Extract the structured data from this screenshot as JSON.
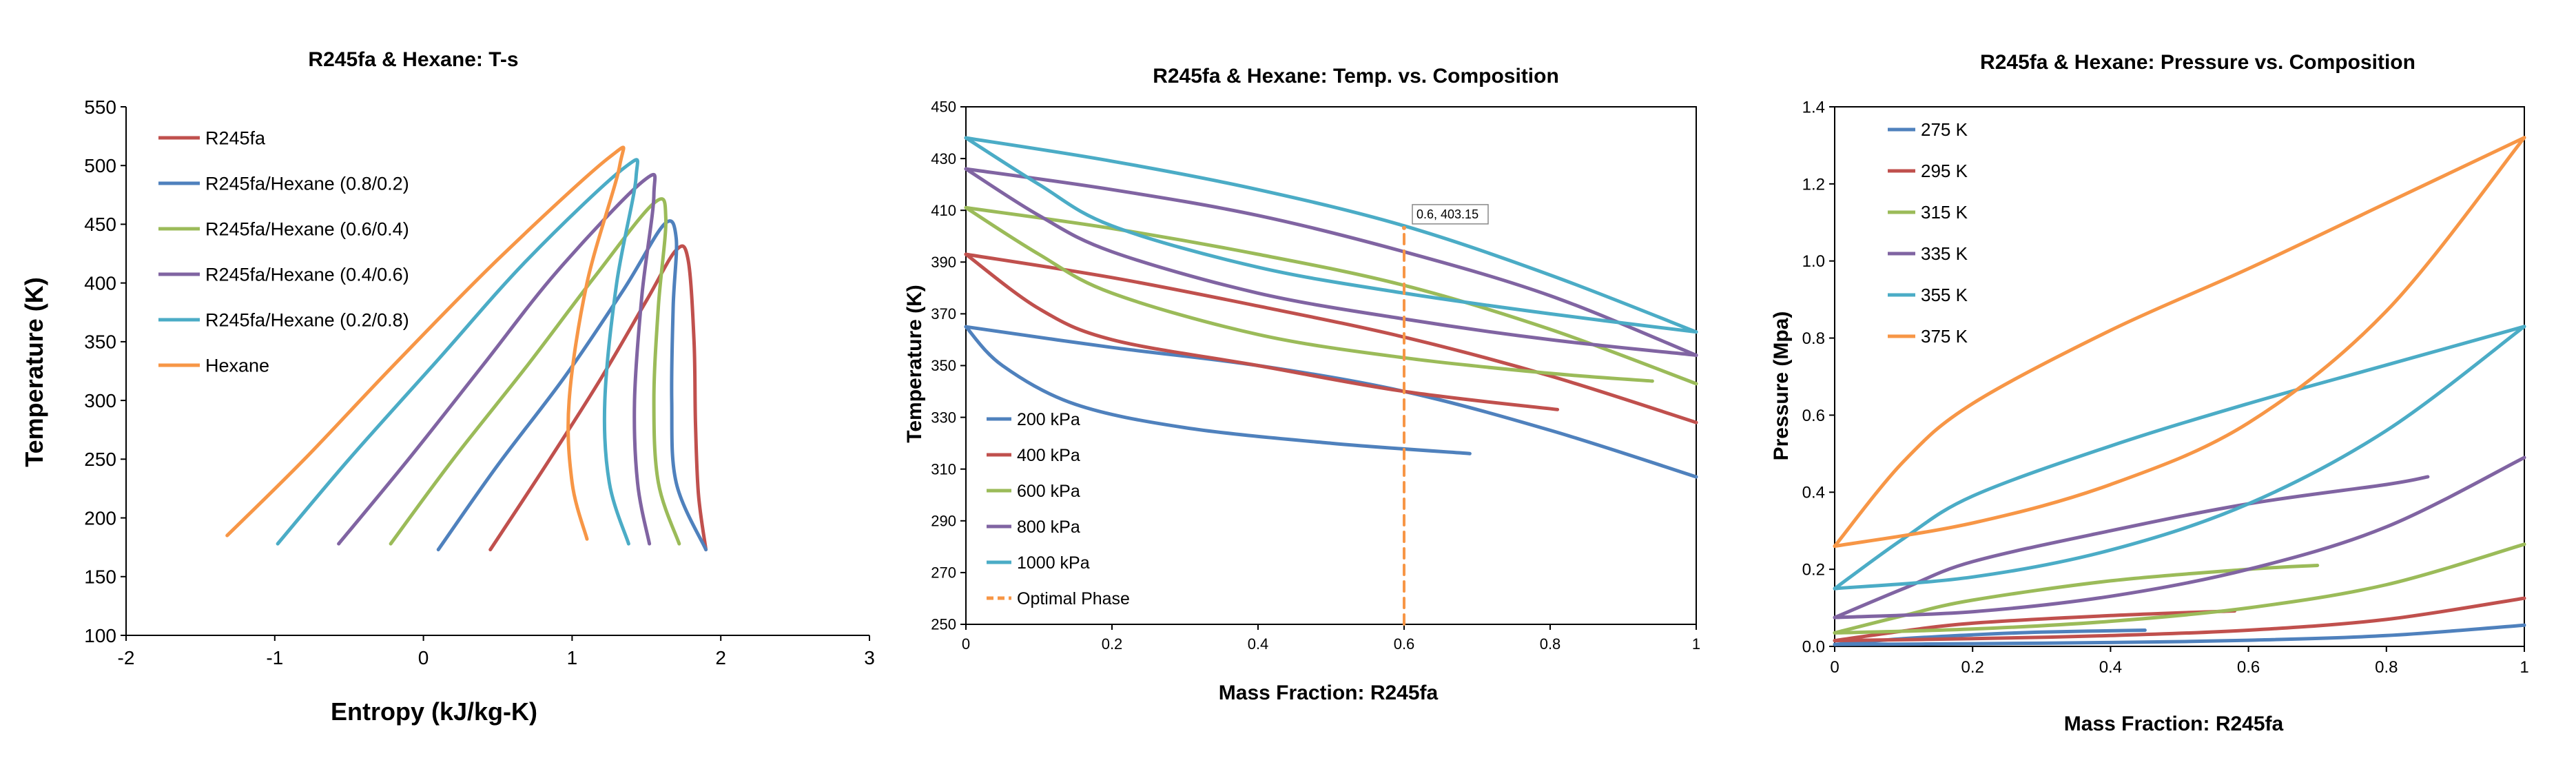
{
  "colors": {
    "red": "#C0504D",
    "blue": "#4F81BD",
    "green": "#9BBB59",
    "purple": "#8064A2",
    "teal": "#4BACC6",
    "orange": "#F79646",
    "axis": "#000000",
    "frame": "#000000"
  },
  "chart_data": [
    {
      "id": "ts",
      "type": "line",
      "title": "R245fa & Hexane: T-s",
      "xlabel": "Entropy (kJ/kg-K)",
      "ylabel": "Temperature (K)",
      "xlim": [
        -2,
        3
      ],
      "ylim": [
        100,
        550
      ],
      "xticks": [
        "-2",
        "-1",
        "0",
        "1",
        "2",
        "3"
      ],
      "yticks": [
        "100",
        "150",
        "200",
        "250",
        "300",
        "350",
        "400",
        "450",
        "500",
        "550"
      ],
      "legend_position": "top-left",
      "series": [
        {
          "name": "R245fa",
          "color": "red",
          "points": [
            [
              0.45,
              173
            ],
            [
              0.85,
              250
            ],
            [
              1.2,
              320
            ],
            [
              1.5,
              385
            ],
            [
              1.7,
              428
            ],
            [
              1.78,
              420
            ],
            [
              1.82,
              350
            ],
            [
              1.83,
              280
            ],
            [
              1.85,
              220
            ],
            [
              1.9,
              173
            ]
          ]
        },
        {
          "name": "R245fa/Hexane (0.8/0.2)",
          "color": "blue",
          "points": [
            [
              0.1,
              173
            ],
            [
              0.5,
              245
            ],
            [
              0.95,
              320
            ],
            [
              1.35,
              395
            ],
            [
              1.62,
              450
            ],
            [
              1.7,
              438
            ],
            [
              1.68,
              380
            ],
            [
              1.67,
              300
            ],
            [
              1.7,
              230
            ],
            [
              1.9,
              173
            ]
          ]
        },
        {
          "name": "R245fa/Hexane (0.6/0.4)",
          "color": "green",
          "points": [
            [
              -0.22,
              178
            ],
            [
              0.2,
              250
            ],
            [
              0.7,
              330
            ],
            [
              1.15,
              405
            ],
            [
              1.55,
              468
            ],
            [
              1.63,
              455
            ],
            [
              1.58,
              380
            ],
            [
              1.55,
              300
            ],
            [
              1.58,
              230
            ],
            [
              1.72,
              178
            ]
          ]
        },
        {
          "name": "R245fa/Hexane (0.4/0.6)",
          "color": "purple",
          "points": [
            [
              -0.57,
              178
            ],
            [
              -0.1,
              250
            ],
            [
              0.4,
              330
            ],
            [
              0.9,
              410
            ],
            [
              1.48,
              487
            ],
            [
              1.55,
              475
            ],
            [
              1.47,
              390
            ],
            [
              1.42,
              300
            ],
            [
              1.44,
              230
            ],
            [
              1.52,
              178
            ]
          ]
        },
        {
          "name": "R245fa/Hexane (0.2/0.8)",
          "color": "teal",
          "points": [
            [
              -0.98,
              178
            ],
            [
              -0.5,
              250
            ],
            [
              0.1,
              335
            ],
            [
              0.7,
              420
            ],
            [
              1.35,
              498
            ],
            [
              1.43,
              490
            ],
            [
              1.3,
              400
            ],
            [
              1.22,
              300
            ],
            [
              1.25,
              230
            ],
            [
              1.38,
              178
            ]
          ]
        },
        {
          "name": "Hexane",
          "color": "orange",
          "points": [
            [
              -1.32,
              185
            ],
            [
              -0.8,
              250
            ],
            [
              -0.2,
              330
            ],
            [
              0.5,
              420
            ],
            [
              1.25,
              507
            ],
            [
              1.32,
              500
            ],
            [
              1.1,
              400
            ],
            [
              0.98,
              300
            ],
            [
              1.0,
              230
            ],
            [
              1.1,
              182
            ]
          ]
        }
      ]
    },
    {
      "id": "tc",
      "type": "line",
      "title": "R245fa & Hexane: Temp. vs. Composition",
      "xlabel": "Mass Fraction: R245fa",
      "ylabel": "Temperature (K)",
      "xlim": [
        0,
        1
      ],
      "ylim": [
        250,
        450
      ],
      "xticks": [
        "0",
        "0.2",
        "0.4",
        "0.6",
        "0.8",
        "1"
      ],
      "yticks": [
        "250",
        "270",
        "290",
        "310",
        "330",
        "350",
        "370",
        "390",
        "410",
        "430",
        "450"
      ],
      "legend_position": "bottom-left",
      "annotation": "0.6, 403.15",
      "series": [
        {
          "name": "200 kPa",
          "color": "blue",
          "curves": [
            [
              [
                0,
                365
              ],
              [
                0.2,
                357
              ],
              [
                0.4,
                350
              ],
              [
                0.6,
                340
              ],
              [
                0.8,
                325
              ],
              [
                1,
                307
              ]
            ],
            [
              [
                0,
                365
              ],
              [
                0.05,
                350
              ],
              [
                0.15,
                335
              ],
              [
                0.3,
                326
              ],
              [
                0.5,
                320
              ],
              [
                0.69,
                316
              ]
            ]
          ]
        },
        {
          "name": "400 kPa",
          "color": "red",
          "curves": [
            [
              [
                0,
                393
              ],
              [
                0.2,
                384
              ],
              [
                0.4,
                373
              ],
              [
                0.6,
                361
              ],
              [
                0.8,
                346
              ],
              [
                1,
                328
              ]
            ],
            [
              [
                0,
                393
              ],
              [
                0.1,
                372
              ],
              [
                0.2,
                360
              ],
              [
                0.4,
                350
              ],
              [
                0.6,
                340
              ],
              [
                0.81,
                333
              ]
            ]
          ]
        },
        {
          "name": "600 kPa",
          "color": "green",
          "curves": [
            [
              [
                0,
                411
              ],
              [
                0.2,
                403
              ],
              [
                0.4,
                393
              ],
              [
                0.6,
                381
              ],
              [
                0.8,
                364
              ],
              [
                1,
                343
              ]
            ],
            [
              [
                0,
                411
              ],
              [
                0.1,
                393
              ],
              [
                0.2,
                378
              ],
              [
                0.4,
                362
              ],
              [
                0.6,
                353
              ],
              [
                0.8,
                347
              ],
              [
                0.94,
                344
              ]
            ]
          ]
        },
        {
          "name": "800 kPa",
          "color": "purple",
          "curves": [
            [
              [
                0,
                426
              ],
              [
                0.2,
                418
              ],
              [
                0.4,
                408
              ],
              [
                0.6,
                394
              ],
              [
                0.8,
                377
              ],
              [
                1,
                354
              ]
            ],
            [
              [
                0,
                426
              ],
              [
                0.1,
                408
              ],
              [
                0.2,
                394
              ],
              [
                0.4,
                378
              ],
              [
                0.6,
                368
              ],
              [
                0.8,
                360
              ],
              [
                1,
                354
              ]
            ]
          ]
        },
        {
          "name": "1000 kPa",
          "color": "teal",
          "curves": [
            [
              [
                0,
                438
              ],
              [
                0.2,
                429
              ],
              [
                0.4,
                418
              ],
              [
                0.6,
                404
              ],
              [
                0.8,
                385
              ],
              [
                1,
                363
              ]
            ],
            [
              [
                0,
                438
              ],
              [
                0.1,
                420
              ],
              [
                0.2,
                404
              ],
              [
                0.4,
                388
              ],
              [
                0.6,
                378
              ],
              [
                0.8,
                370
              ],
              [
                1,
                363
              ]
            ]
          ]
        },
        {
          "name": "Optimal Phase",
          "color": "orange",
          "curves": [
            [
              [
                0.6,
                250
              ],
              [
                0.6,
                403.15
              ]
            ]
          ],
          "dashed": true
        }
      ]
    },
    {
      "id": "pc",
      "type": "line",
      "title": "R245fa & Hexane: Pressure vs. Composition",
      "xlabel": "Mass Fraction: R245fa",
      "ylabel": "Pressure (Mpa)",
      "xlim": [
        0,
        1
      ],
      "ylim": [
        0,
        1.4
      ],
      "xticks": [
        "0",
        "0.2",
        "0.4",
        "0.6",
        "0.8",
        "1"
      ],
      "yticks": [
        "0.0",
        "0.2",
        "0.4",
        "0.6",
        "0.8",
        "1.0",
        "1.2",
        "1.4"
      ],
      "legend_position": "top-left",
      "series": [
        {
          "name": "275 K",
          "color": "blue",
          "curves": [
            [
              [
                0,
                0.005
              ],
              [
                0.2,
                0.007
              ],
              [
                0.4,
                0.01
              ],
              [
                0.6,
                0.016
              ],
              [
                0.8,
                0.028
              ],
              [
                1,
                0.055
              ]
            ],
            [
              [
                0,
                0.005
              ],
              [
                0.1,
                0.02
              ],
              [
                0.2,
                0.03
              ],
              [
                0.3,
                0.037
              ],
              [
                0.45,
                0.042
              ]
            ]
          ]
        },
        {
          "name": "295 K",
          "color": "red",
          "curves": [
            [
              [
                0,
                0.015
              ],
              [
                0.2,
                0.02
              ],
              [
                0.4,
                0.028
              ],
              [
                0.6,
                0.042
              ],
              [
                0.8,
                0.07
              ],
              [
                1,
                0.125
              ]
            ],
            [
              [
                0,
                0.015
              ],
              [
                0.1,
                0.04
              ],
              [
                0.2,
                0.06
              ],
              [
                0.4,
                0.08
              ],
              [
                0.58,
                0.092
              ]
            ]
          ]
        },
        {
          "name": "315 K",
          "color": "green",
          "curves": [
            [
              [
                0,
                0.035
              ],
              [
                0.2,
                0.045
              ],
              [
                0.4,
                0.065
              ],
              [
                0.6,
                0.1
              ],
              [
                0.8,
                0.16
              ],
              [
                1,
                0.265
              ]
            ],
            [
              [
                0,
                0.035
              ],
              [
                0.1,
                0.08
              ],
              [
                0.2,
                0.12
              ],
              [
                0.4,
                0.17
              ],
              [
                0.6,
                0.2
              ],
              [
                0.7,
                0.21
              ]
            ]
          ]
        },
        {
          "name": "335 K",
          "color": "purple",
          "curves": [
            [
              [
                0,
                0.075
              ],
              [
                0.2,
                0.09
              ],
              [
                0.4,
                0.13
              ],
              [
                0.6,
                0.2
              ],
              [
                0.8,
                0.31
              ],
              [
                1,
                0.49
              ]
            ],
            [
              [
                0,
                0.075
              ],
              [
                0.1,
                0.15
              ],
              [
                0.2,
                0.22
              ],
              [
                0.4,
                0.3
              ],
              [
                0.6,
                0.37
              ],
              [
                0.8,
                0.42
              ],
              [
                0.86,
                0.44
              ]
            ]
          ]
        },
        {
          "name": "355 K",
          "color": "teal",
          "curves": [
            [
              [
                0,
                0.15
              ],
              [
                0.2,
                0.18
              ],
              [
                0.4,
                0.25
              ],
              [
                0.6,
                0.37
              ],
              [
                0.8,
                0.56
              ],
              [
                1,
                0.83
              ]
            ],
            [
              [
                0,
                0.15
              ],
              [
                0.1,
                0.28
              ],
              [
                0.2,
                0.39
              ],
              [
                0.4,
                0.52
              ],
              [
                0.6,
                0.63
              ],
              [
                0.8,
                0.73
              ],
              [
                1,
                0.83
              ]
            ]
          ]
        },
        {
          "name": "375 K",
          "color": "orange",
          "curves": [
            [
              [
                0,
                0.26
              ],
              [
                0.2,
                0.32
              ],
              [
                0.4,
                0.42
              ],
              [
                0.6,
                0.58
              ],
              [
                0.8,
                0.87
              ],
              [
                1,
                1.32
              ]
            ],
            [
              [
                0,
                0.26
              ],
              [
                0.1,
                0.48
              ],
              [
                0.2,
                0.63
              ],
              [
                0.4,
                0.82
              ],
              [
                0.6,
                0.98
              ],
              [
                0.8,
                1.15
              ],
              [
                1,
                1.32
              ]
            ]
          ]
        }
      ]
    }
  ]
}
